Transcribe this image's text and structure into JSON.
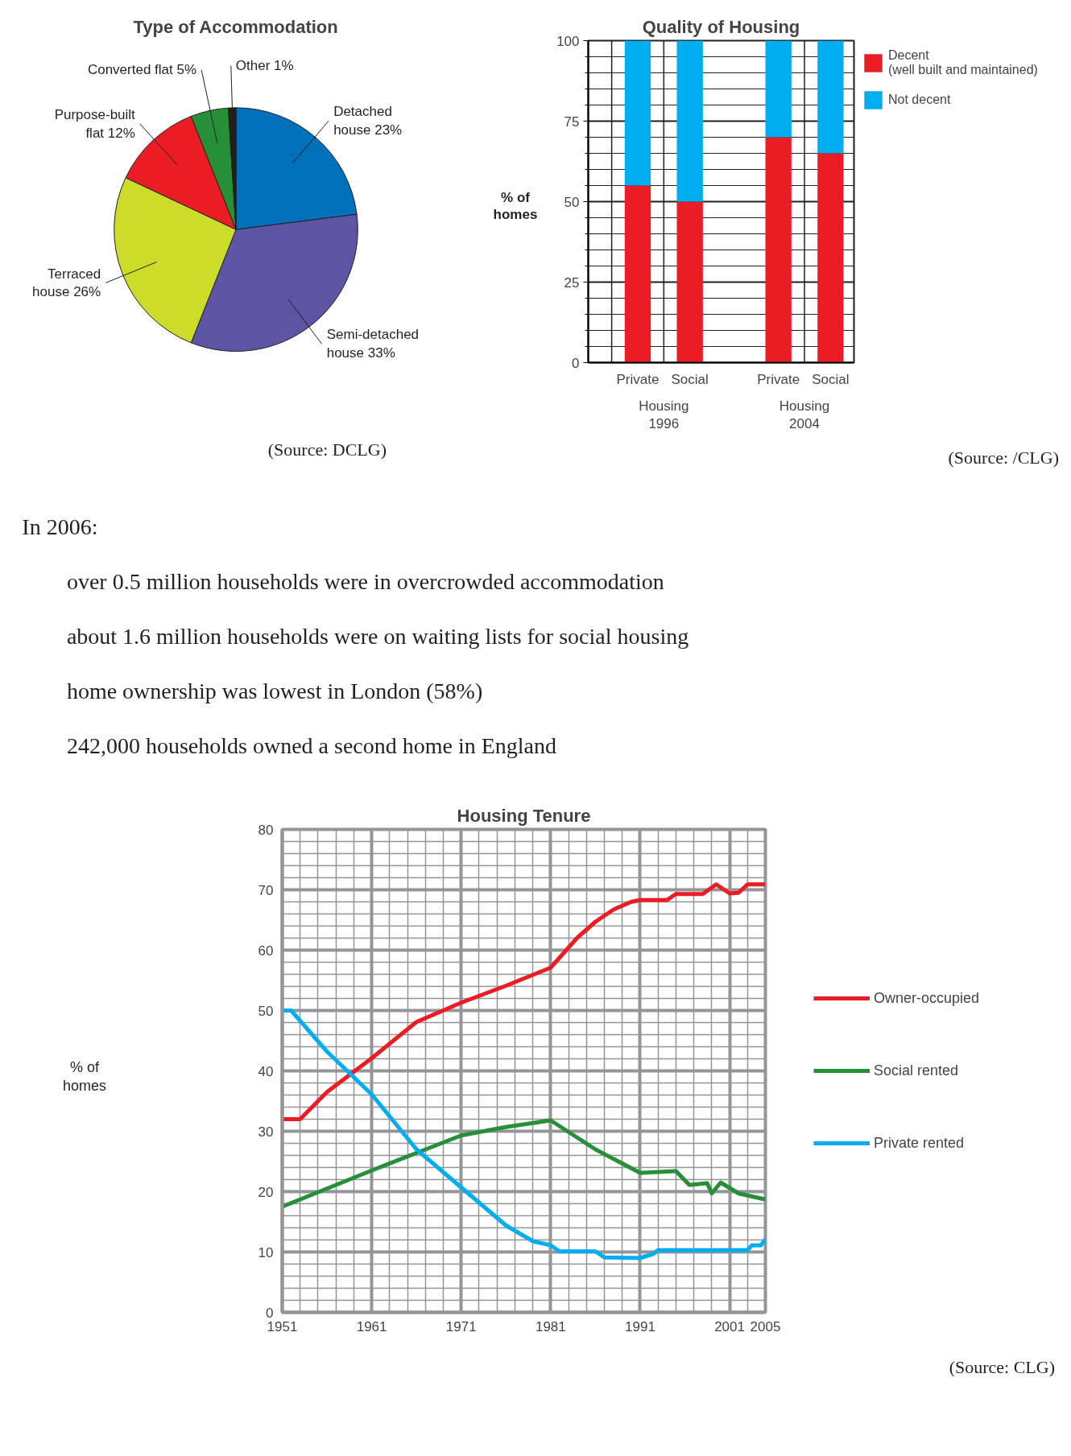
{
  "chart_data": [
    {
      "type": "pie",
      "title": "Type of Accommodation",
      "categories": [
        "Detached house 23%",
        "Semi-detached house 33%",
        "Terraced house 26%",
        "Purpose-built flat 12%",
        "Converted flat 5%",
        "Other 1%"
      ],
      "values": [
        23,
        33,
        26,
        12,
        5,
        1
      ],
      "colors": [
        "#0070bb",
        "#5b55a3",
        "#cddc29",
        "#ec1c24",
        "#268f38",
        "#231f20"
      ],
      "annotations": [
        "(Source: DCLG)"
      ]
    },
    {
      "type": "bar",
      "title": "Quality of Housing",
      "ylabel": "% of\nhomes",
      "stacked": true,
      "categories": [
        "Private",
        "Social",
        "Private",
        "Social"
      ],
      "series": [
        {
          "name": "Decent\n(well built and maintained)",
          "color": "#ec1c24",
          "values": [
            55,
            50,
            70,
            65
          ]
        },
        {
          "name": "Not decent",
          "color": "#00adef",
          "values": [
            45,
            50,
            30,
            35
          ]
        }
      ],
      "ylim": [
        0,
        100
      ],
      "yticks": [
        0,
        25,
        50,
        75,
        100
      ],
      "grid": "y",
      "legend": "right",
      "annotations": [
        "Housing\n1996",
        "Housing\n2004",
        "(Source: /CLG)"
      ]
    },
    {
      "type": "other",
      "annotations": [
        "In 2006:",
        "over 0.5 million households were in overcrowded accommodation",
        "about 1.6 million households were on waiting lists for social housing",
        "home ownership was lowest in London (58%)",
        "242,000 households owned a second home in England"
      ]
    },
    {
      "type": "line",
      "title": "Housing Tenure",
      "ylabel": "% of\nhomes",
      "xlim": [
        1951,
        2005
      ],
      "xticks": [
        1951,
        1961,
        1971,
        1981,
        1991,
        2001,
        2005
      ],
      "ylim": [
        0,
        80
      ],
      "yticks": [
        0,
        10,
        20,
        30,
        40,
        50,
        60,
        70,
        80
      ],
      "grid": true,
      "legend": "right",
      "marker": "none",
      "line_style": "solid",
      "series": [
        {
          "name": "Owner-occupied",
          "color": "#ec1c24",
          "x": [
            1951,
            1953,
            1956,
            1961,
            1966,
            1971,
            1976,
            1981,
            1984,
            1986,
            1988,
            1990,
            1991,
            1994,
            1995,
            1998,
            1999.5,
            2001,
            2002,
            2003,
            2005
          ],
          "values": [
            32,
            32,
            36.5,
            42.1,
            48.1,
            51.3,
            54.1,
            57.1,
            62.1,
            64.7,
            66.7,
            68,
            68.3,
            68.3,
            69.3,
            69.3,
            70.9,
            69.4,
            69.5,
            70.9,
            70.9
          ]
        },
        {
          "name": "Social rented",
          "color": "#268f38",
          "x": [
            1951,
            1956,
            1961,
            1966,
            1971,
            1976,
            1981,
            1986,
            1991,
            1995,
            1996.5,
            1998.5,
            1999,
            2000,
            2002,
            2005
          ],
          "values": [
            17.5,
            20.5,
            23.5,
            26.4,
            29.3,
            30.7,
            31.8,
            27,
            23.1,
            23.4,
            21.1,
            21.4,
            19.7,
            21.5,
            19.7,
            18.7
          ]
        },
        {
          "name": "Private rented",
          "color": "#00adef",
          "x": [
            1951,
            1952,
            1956,
            1961,
            1966,
            1971,
            1976,
            1979,
            1981,
            1982,
            1986,
            1987,
            1991,
            1992.5,
            1993,
            2003,
            2003.5,
            2004.5,
            2005
          ],
          "values": [
            50,
            50,
            43.2,
            36.1,
            27,
            20.7,
            14.4,
            11.8,
            11.1,
            10.1,
            10.1,
            9.1,
            9,
            9.7,
            10.3,
            10.3,
            11.1,
            11.1,
            12.1
          ]
        }
      ],
      "annotations": [
        "(Source: CLG)"
      ]
    }
  ]
}
